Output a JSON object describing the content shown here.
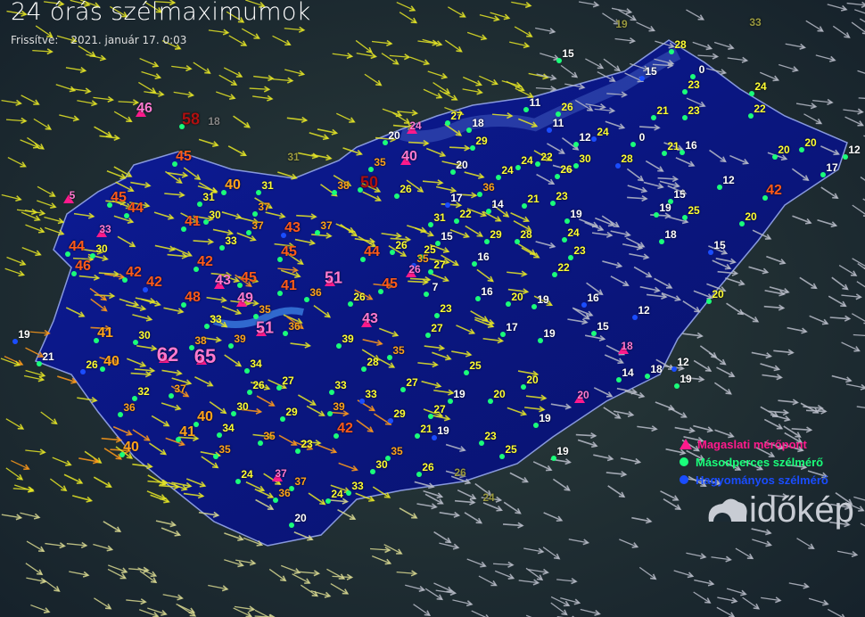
{
  "header": {
    "title": "24 órás szélmaximumok",
    "updated_label": "Frissítve:",
    "updated_value": "2021. január 17. 0:03"
  },
  "legend": [
    {
      "label": "Magaslati mérőpont",
      "symbol": "triangle",
      "color": "#ff1a8c"
    },
    {
      "label": "Másodperces szélmérő",
      "symbol": "circle",
      "color": "#1aff7a"
    },
    {
      "label": "Hagyományos szélmérő",
      "symbol": "circle",
      "color": "#1a4dff"
    }
  ],
  "logo": {
    "text": "időkép"
  },
  "colors": {
    "w": "#ffffff",
    "y": "#ffff33",
    "o": "#ffa31a",
    "r": "#ff5a1a",
    "p": "#ff7ad0",
    "d": "#b01010",
    "g": "#9a9a40",
    "s": "#888888"
  },
  "stations": [
    [
      "19",
      "g"
    ],
    [
      "33",
      "g"
    ],
    [
      "28",
      "y"
    ],
    [
      "15",
      "w"
    ],
    [
      "15",
      "w"
    ],
    [
      "0",
      "w"
    ],
    [
      "23",
      "y"
    ],
    [
      "24",
      "y"
    ],
    [
      "22",
      "y"
    ],
    [
      "23",
      "y"
    ],
    [
      "21",
      "y"
    ],
    [
      "11",
      "w"
    ],
    [
      "26",
      "y"
    ],
    [
      "11",
      "w"
    ],
    [
      "27",
      "y"
    ],
    [
      "18",
      "w"
    ],
    [
      "46",
      "p"
    ],
    [
      "58",
      "d"
    ],
    [
      "18",
      "s"
    ],
    [
      "24",
      "p"
    ],
    [
      "20",
      "w"
    ],
    [
      "12",
      "w"
    ],
    [
      "24",
      "y"
    ],
    [
      "0",
      "w"
    ],
    [
      "21",
      "y"
    ],
    [
      "16",
      "w"
    ],
    [
      "20",
      "y"
    ],
    [
      "20",
      "y"
    ],
    [
      "12",
      "w"
    ],
    [
      "29",
      "y"
    ],
    [
      "45",
      "r"
    ],
    [
      "31",
      "g"
    ],
    [
      "40",
      "p"
    ],
    [
      "35",
      "o"
    ],
    [
      "20",
      "w"
    ],
    [
      "24",
      "y"
    ],
    [
      "24",
      "y"
    ],
    [
      "22",
      "y"
    ],
    [
      "30",
      "y"
    ],
    [
      "26",
      "y"
    ],
    [
      "28",
      "y"
    ],
    [
      "17",
      "w"
    ],
    [
      "12",
      "w"
    ],
    [
      "40",
      "o"
    ],
    [
      "31",
      "y"
    ],
    [
      "38",
      "o"
    ],
    [
      "50",
      "d"
    ],
    [
      "26",
      "y"
    ],
    [
      "36",
      "o"
    ],
    [
      "17",
      "w"
    ],
    [
      "14",
      "w"
    ],
    [
      "21",
      "y"
    ],
    [
      "23",
      "y"
    ],
    [
      "42",
      "r"
    ],
    [
      "15",
      "w"
    ],
    [
      "19",
      "w"
    ],
    [
      "25",
      "y"
    ],
    [
      "20",
      "y"
    ],
    [
      "5",
      "p"
    ],
    [
      "45",
      "r"
    ],
    [
      "31",
      "y"
    ],
    [
      "37",
      "o"
    ],
    [
      "44",
      "r"
    ],
    [
      "30",
      "y"
    ],
    [
      "33",
      "p"
    ],
    [
      "41",
      "r"
    ],
    [
      "37",
      "o"
    ],
    [
      "43",
      "r"
    ],
    [
      "37",
      "o"
    ],
    [
      "31",
      "y"
    ],
    [
      "22",
      "y"
    ],
    [
      "19",
      "w"
    ],
    [
      "24",
      "y"
    ],
    [
      "29",
      "y"
    ],
    [
      "28",
      "y"
    ],
    [
      "18",
      "w"
    ],
    [
      "15",
      "w"
    ],
    [
      "44",
      "r"
    ],
    [
      "30",
      "y"
    ],
    [
      "33",
      "y"
    ],
    [
      "45",
      "r"
    ],
    [
      "44",
      "r"
    ],
    [
      "26",
      "y"
    ],
    [
      "25",
      "y"
    ],
    [
      "15",
      "w"
    ],
    [
      "35",
      "o"
    ],
    [
      "23",
      "y"
    ],
    [
      "16",
      "w"
    ],
    [
      "27",
      "y"
    ],
    [
      "46",
      "r"
    ],
    [
      "42",
      "r"
    ],
    [
      "45",
      "r"
    ],
    [
      "43",
      "p"
    ],
    [
      "42",
      "r"
    ],
    [
      "42",
      "r"
    ],
    [
      "51",
      "p"
    ],
    [
      "45",
      "r"
    ],
    [
      "26",
      "p"
    ],
    [
      "22",
      "y"
    ],
    [
      "7",
      "w"
    ],
    [
      "16",
      "w"
    ],
    [
      "20",
      "y"
    ],
    [
      "19",
      "w"
    ],
    [
      "16",
      "w"
    ],
    [
      "20",
      "y"
    ],
    [
      "48",
      "r"
    ],
    [
      "49",
      "p"
    ],
    [
      "41",
      "r"
    ],
    [
      "36",
      "o"
    ],
    [
      "26",
      "y"
    ],
    [
      "35",
      "o"
    ],
    [
      "23",
      "y"
    ],
    [
      "12",
      "w"
    ],
    [
      "33",
      "y"
    ],
    [
      "51",
      "p"
    ],
    [
      "36",
      "o"
    ],
    [
      "43",
      "p"
    ],
    [
      "27",
      "y"
    ],
    [
      "17",
      "w"
    ],
    [
      "19",
      "w"
    ],
    [
      "15",
      "w"
    ],
    [
      "19",
      "w"
    ],
    [
      "41",
      "o"
    ],
    [
      "30",
      "y"
    ],
    [
      "38",
      "o"
    ],
    [
      "39",
      "o"
    ],
    [
      "39",
      "y"
    ],
    [
      "35",
      "o"
    ],
    [
      "18",
      "p"
    ],
    [
      "21",
      "w"
    ],
    [
      "26",
      "y"
    ],
    [
      "40",
      "o"
    ],
    [
      "62",
      "p"
    ],
    [
      "65",
      "p"
    ],
    [
      "34",
      "y"
    ],
    [
      "28",
      "y"
    ],
    [
      "25",
      "y"
    ],
    [
      "14",
      "w"
    ],
    [
      "18",
      "w"
    ],
    [
      "12",
      "w"
    ],
    [
      "27",
      "y"
    ],
    [
      "26",
      "y"
    ],
    [
      "33",
      "y"
    ],
    [
      "27",
      "y"
    ],
    [
      "19",
      "w"
    ],
    [
      "20",
      "y"
    ],
    [
      "32",
      "y"
    ],
    [
      "37",
      "o"
    ],
    [
      "33",
      "y"
    ],
    [
      "19",
      "w"
    ],
    [
      "20",
      "y"
    ],
    [
      "20",
      "p"
    ],
    [
      "36",
      "o"
    ],
    [
      "30",
      "y"
    ],
    [
      "39",
      "o"
    ],
    [
      "29",
      "y"
    ],
    [
      "27",
      "y"
    ],
    [
      "29",
      "y"
    ],
    [
      "19",
      "w"
    ],
    [
      "40",
      "o"
    ],
    [
      "34",
      "y"
    ],
    [
      "41",
      "o"
    ],
    [
      "21",
      "y"
    ],
    [
      "42",
      "r"
    ],
    [
      "35",
      "o"
    ],
    [
      "23",
      "y"
    ],
    [
      "19",
      "w"
    ],
    [
      "23",
      "y"
    ],
    [
      "40",
      "o"
    ],
    [
      "35",
      "o"
    ],
    [
      "35",
      "o"
    ],
    [
      "25",
      "y"
    ],
    [
      "19",
      "w"
    ],
    [
      "30",
      "y"
    ],
    [
      "26",
      "y"
    ],
    [
      "26",
      "g"
    ],
    [
      "24",
      "y"
    ],
    [
      "37",
      "p"
    ],
    [
      "37",
      "o"
    ],
    [
      "33",
      "y"
    ],
    [
      "24",
      "g"
    ],
    [
      "36",
      "o"
    ],
    [
      "24",
      "y"
    ],
    [
      "20",
      "w"
    ]
  ]
}
